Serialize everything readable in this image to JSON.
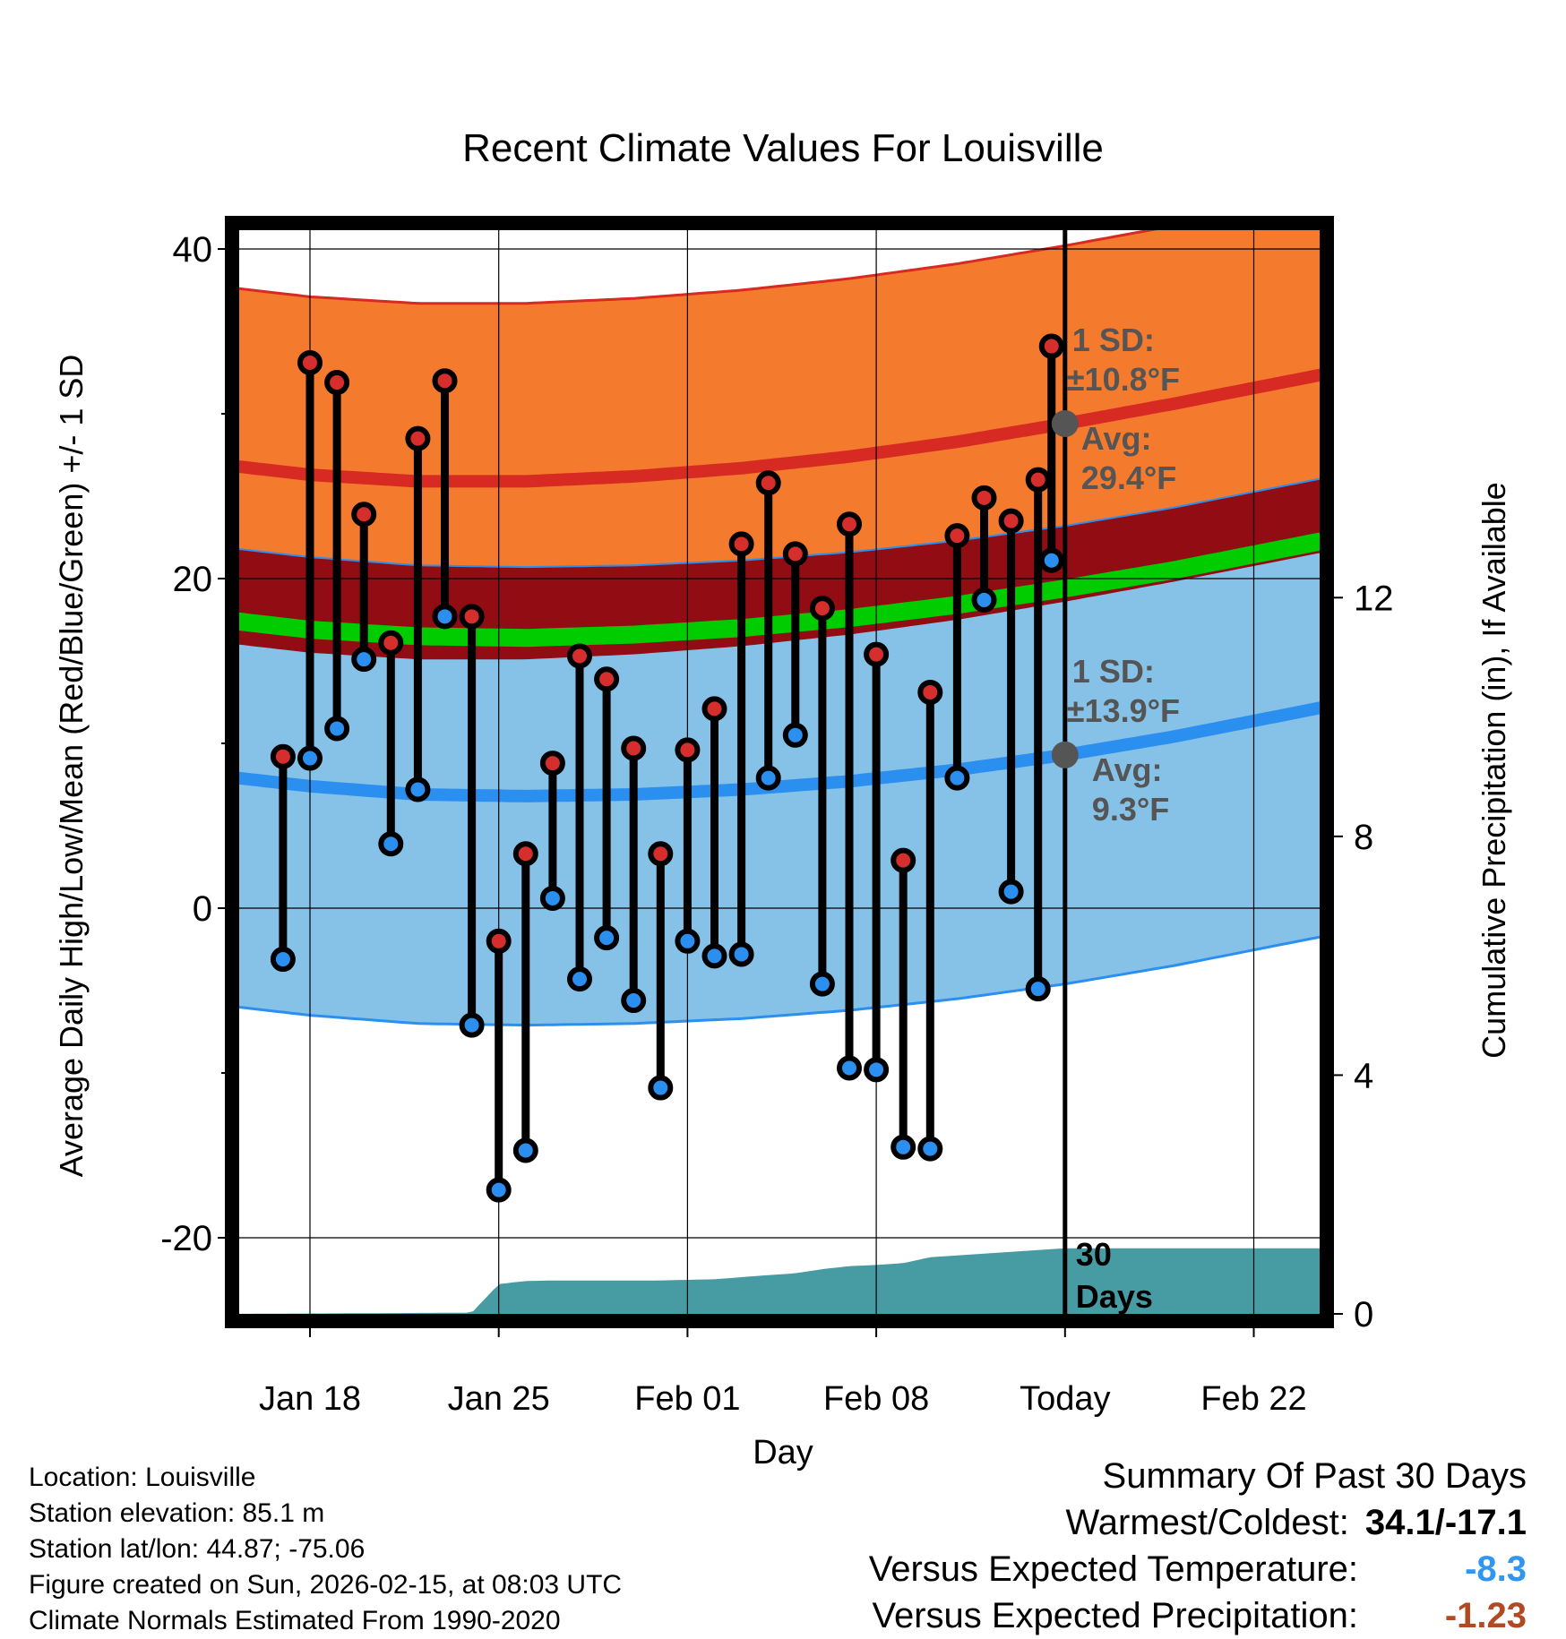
{
  "chart_data": {
    "type": "line",
    "title": "Recent Climate Values For Louisville",
    "xlabel": "Day",
    "ylabel": "Average Daily High/Low/Mean (Red/Blue/Green) +/- 1 SD",
    "y2label": "Cumulative Precipitation (in), If Available",
    "ylim": [
      -25,
      42
    ],
    "y2lim": [
      0,
      18
    ],
    "y_ticks": [
      "40",
      "20",
      "0",
      "-20"
    ],
    "y2_ticks": [
      "12",
      "8",
      "4",
      "0"
    ],
    "x_tick_labels": [
      "Jan 18",
      "Jan 25",
      "Feb 01",
      "Feb 08",
      "Today",
      "Feb 22"
    ],
    "x_tick_days": [
      18,
      25,
      32,
      39,
      46,
      53
    ],
    "x_range_days": [
      14.8,
      55.6
    ],
    "today_day": 46,
    "days_window_label": [
      "30",
      "Days"
    ],
    "days": [
      17,
      18,
      19,
      20,
      21,
      22,
      23,
      24,
      25,
      26,
      27,
      28,
      29,
      30,
      31,
      32,
      33,
      34,
      35,
      36,
      37,
      38,
      39,
      40,
      41,
      42,
      43,
      44,
      45
    ],
    "daily_high": [
      9.2,
      33.1,
      31.9,
      23.9,
      16.1,
      28.5,
      32.0,
      17.7,
      -2.0,
      3.3,
      8.8,
      15.3,
      13.9,
      9.7,
      3.3,
      9.6,
      12.1,
      22.1,
      25.8,
      21.5,
      18.2,
      23.3,
      15.4,
      2.9,
      13.1,
      22.6,
      24.9,
      23.5,
      26.0
    ],
    "daily_low": [
      -3.1,
      9.1,
      10.9,
      15.1,
      3.9,
      7.2,
      17.7,
      -7.1,
      -17.1,
      -14.7,
      0.6,
      -4.3,
      -1.8,
      -5.6,
      -10.9,
      -2.0,
      -2.9,
      -2.8,
      7.9,
      10.5,
      -4.6,
      -9.7,
      -9.8,
      -14.5,
      -14.6,
      7.9,
      18.7,
      1.0,
      -4.9
    ],
    "today_high": 34.1,
    "today_low": 21.1,
    "normals": {
      "days": [
        14.8,
        18,
        22,
        26,
        30,
        34,
        38,
        42,
        46,
        50,
        55.6
      ],
      "high_avg": [
        26.9,
        26.3,
        25.9,
        25.9,
        26.2,
        26.7,
        27.4,
        28.3,
        29.4,
        30.6,
        32.4
      ],
      "high_sd": 10.8,
      "low_avg": [
        8.0,
        7.4,
        6.9,
        6.8,
        6.9,
        7.2,
        7.7,
        8.4,
        9.3,
        10.4,
        12.2
      ],
      "low_sd": 13.9,
      "mean_avg": [
        17.5,
        16.9,
        16.5,
        16.4,
        16.6,
        17.0,
        17.6,
        18.4,
        19.4,
        20.5,
        22.3
      ],
      "mean_halfwidth": 0.5
    },
    "precip_cumulative": {
      "days": [
        14.8,
        24,
        25,
        26,
        27,
        31,
        33,
        35,
        36,
        37,
        38,
        39,
        40,
        41,
        46,
        55.6
      ],
      "values": [
        0,
        0.02,
        0.5,
        0.55,
        0.56,
        0.56,
        0.58,
        0.65,
        0.68,
        0.75,
        0.8,
        0.82,
        0.85,
        0.95,
        1.1,
        1.1
      ]
    },
    "annotations": {
      "high_sd_label": [
        "1 SD:",
        "±10.8°F"
      ],
      "high_avg_label": [
        "Avg:",
        "29.4°F"
      ],
      "low_sd_label": [
        "1 SD:",
        "±13.9°F"
      ],
      "low_avg_label": [
        "Avg:",
        "9.3°F"
      ]
    }
  },
  "station_info": {
    "location": "Location: Louisville",
    "elevation": "Station elevation: 85.1 m",
    "latlon": "Station lat/lon: 44.87; -75.06",
    "created": "Figure created on Sun, 2026-02-15, at 08:03 UTC",
    "normals_period": "Climate Normals Estimated From 1990-2020"
  },
  "summary": {
    "heading": "Summary Of Past 30 Days",
    "warmest_label": "Warmest/Coldest:",
    "warmest_value": "34.1/-17.1",
    "temp_label": "Versus Expected Temperature:",
    "temp_value": "-8.3",
    "precip_label": "Versus Expected Precipitation:",
    "precip_value": "-1.23"
  },
  "colors": {
    "high_band": "#f47a2e",
    "high_line": "#d72a22",
    "low_band": "#86c2e8",
    "low_line": "#2b8ff0",
    "overlap_band": "#920c14",
    "mean_line": "#00cc00",
    "precip_fill": "#479ca3",
    "annotation_text": "#555555",
    "high_point": "#d62d2d",
    "low_point": "#2b8ff0"
  }
}
